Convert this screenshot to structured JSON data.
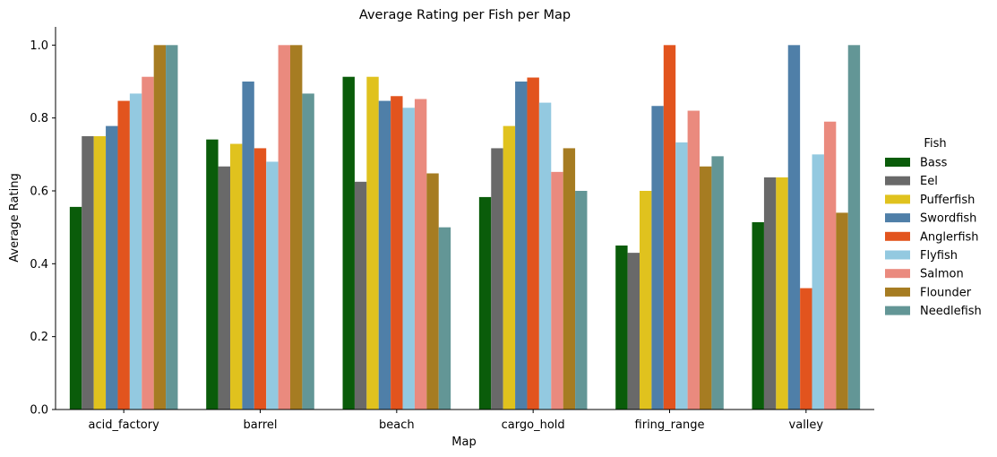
{
  "chart_data": {
    "type": "bar",
    "title": "Average Rating per Fish per Map",
    "xlabel": "Map",
    "ylabel": "Average Rating",
    "ylim": [
      0,
      1.05
    ],
    "yticks": [
      "0.0",
      "0.2",
      "0.4",
      "0.6",
      "0.8",
      "1.0"
    ],
    "grid": false,
    "legend": {
      "title": "Fish",
      "placement": "right"
    },
    "categories": [
      "acid_factory",
      "barrel",
      "beach",
      "cargo_hold",
      "firing_range",
      "valley"
    ],
    "series": [
      {
        "name": "Bass",
        "color": "#0a5c0a",
        "values": [
          0.556,
          0.741,
          0.913,
          0.583,
          0.45,
          0.514
        ]
      },
      {
        "name": "Eel",
        "color": "#696969",
        "values": [
          0.75,
          0.667,
          0.625,
          0.717,
          0.43,
          0.637
        ]
      },
      {
        "name": "Pufferfish",
        "color": "#e0c21e",
        "values": [
          0.75,
          0.729,
          0.913,
          0.778,
          0.6,
          0.637
        ]
      },
      {
        "name": "Swordfish",
        "color": "#4f7fa8",
        "values": [
          0.778,
          0.9,
          0.847,
          0.9,
          0.833,
          1.0
        ]
      },
      {
        "name": "Anglerfish",
        "color": "#e2541e",
        "values": [
          0.847,
          0.717,
          0.86,
          0.911,
          1.0,
          0.333
        ]
      },
      {
        "name": "Flyfish",
        "color": "#93c9e0",
        "values": [
          0.867,
          0.68,
          0.828,
          0.842,
          0.733,
          0.7
        ]
      },
      {
        "name": "Salmon",
        "color": "#ea8a7e",
        "values": [
          0.913,
          1.0,
          0.852,
          0.652,
          0.82,
          0.79
        ]
      },
      {
        "name": "Flounder",
        "color": "#a67c22",
        "values": [
          1.0,
          1.0,
          0.648,
          0.717,
          0.667,
          0.54
        ]
      },
      {
        "name": "Needlefish",
        "color": "#639696",
        "values": [
          1.0,
          0.867,
          0.5,
          0.6,
          0.695,
          1.0
        ]
      }
    ]
  }
}
